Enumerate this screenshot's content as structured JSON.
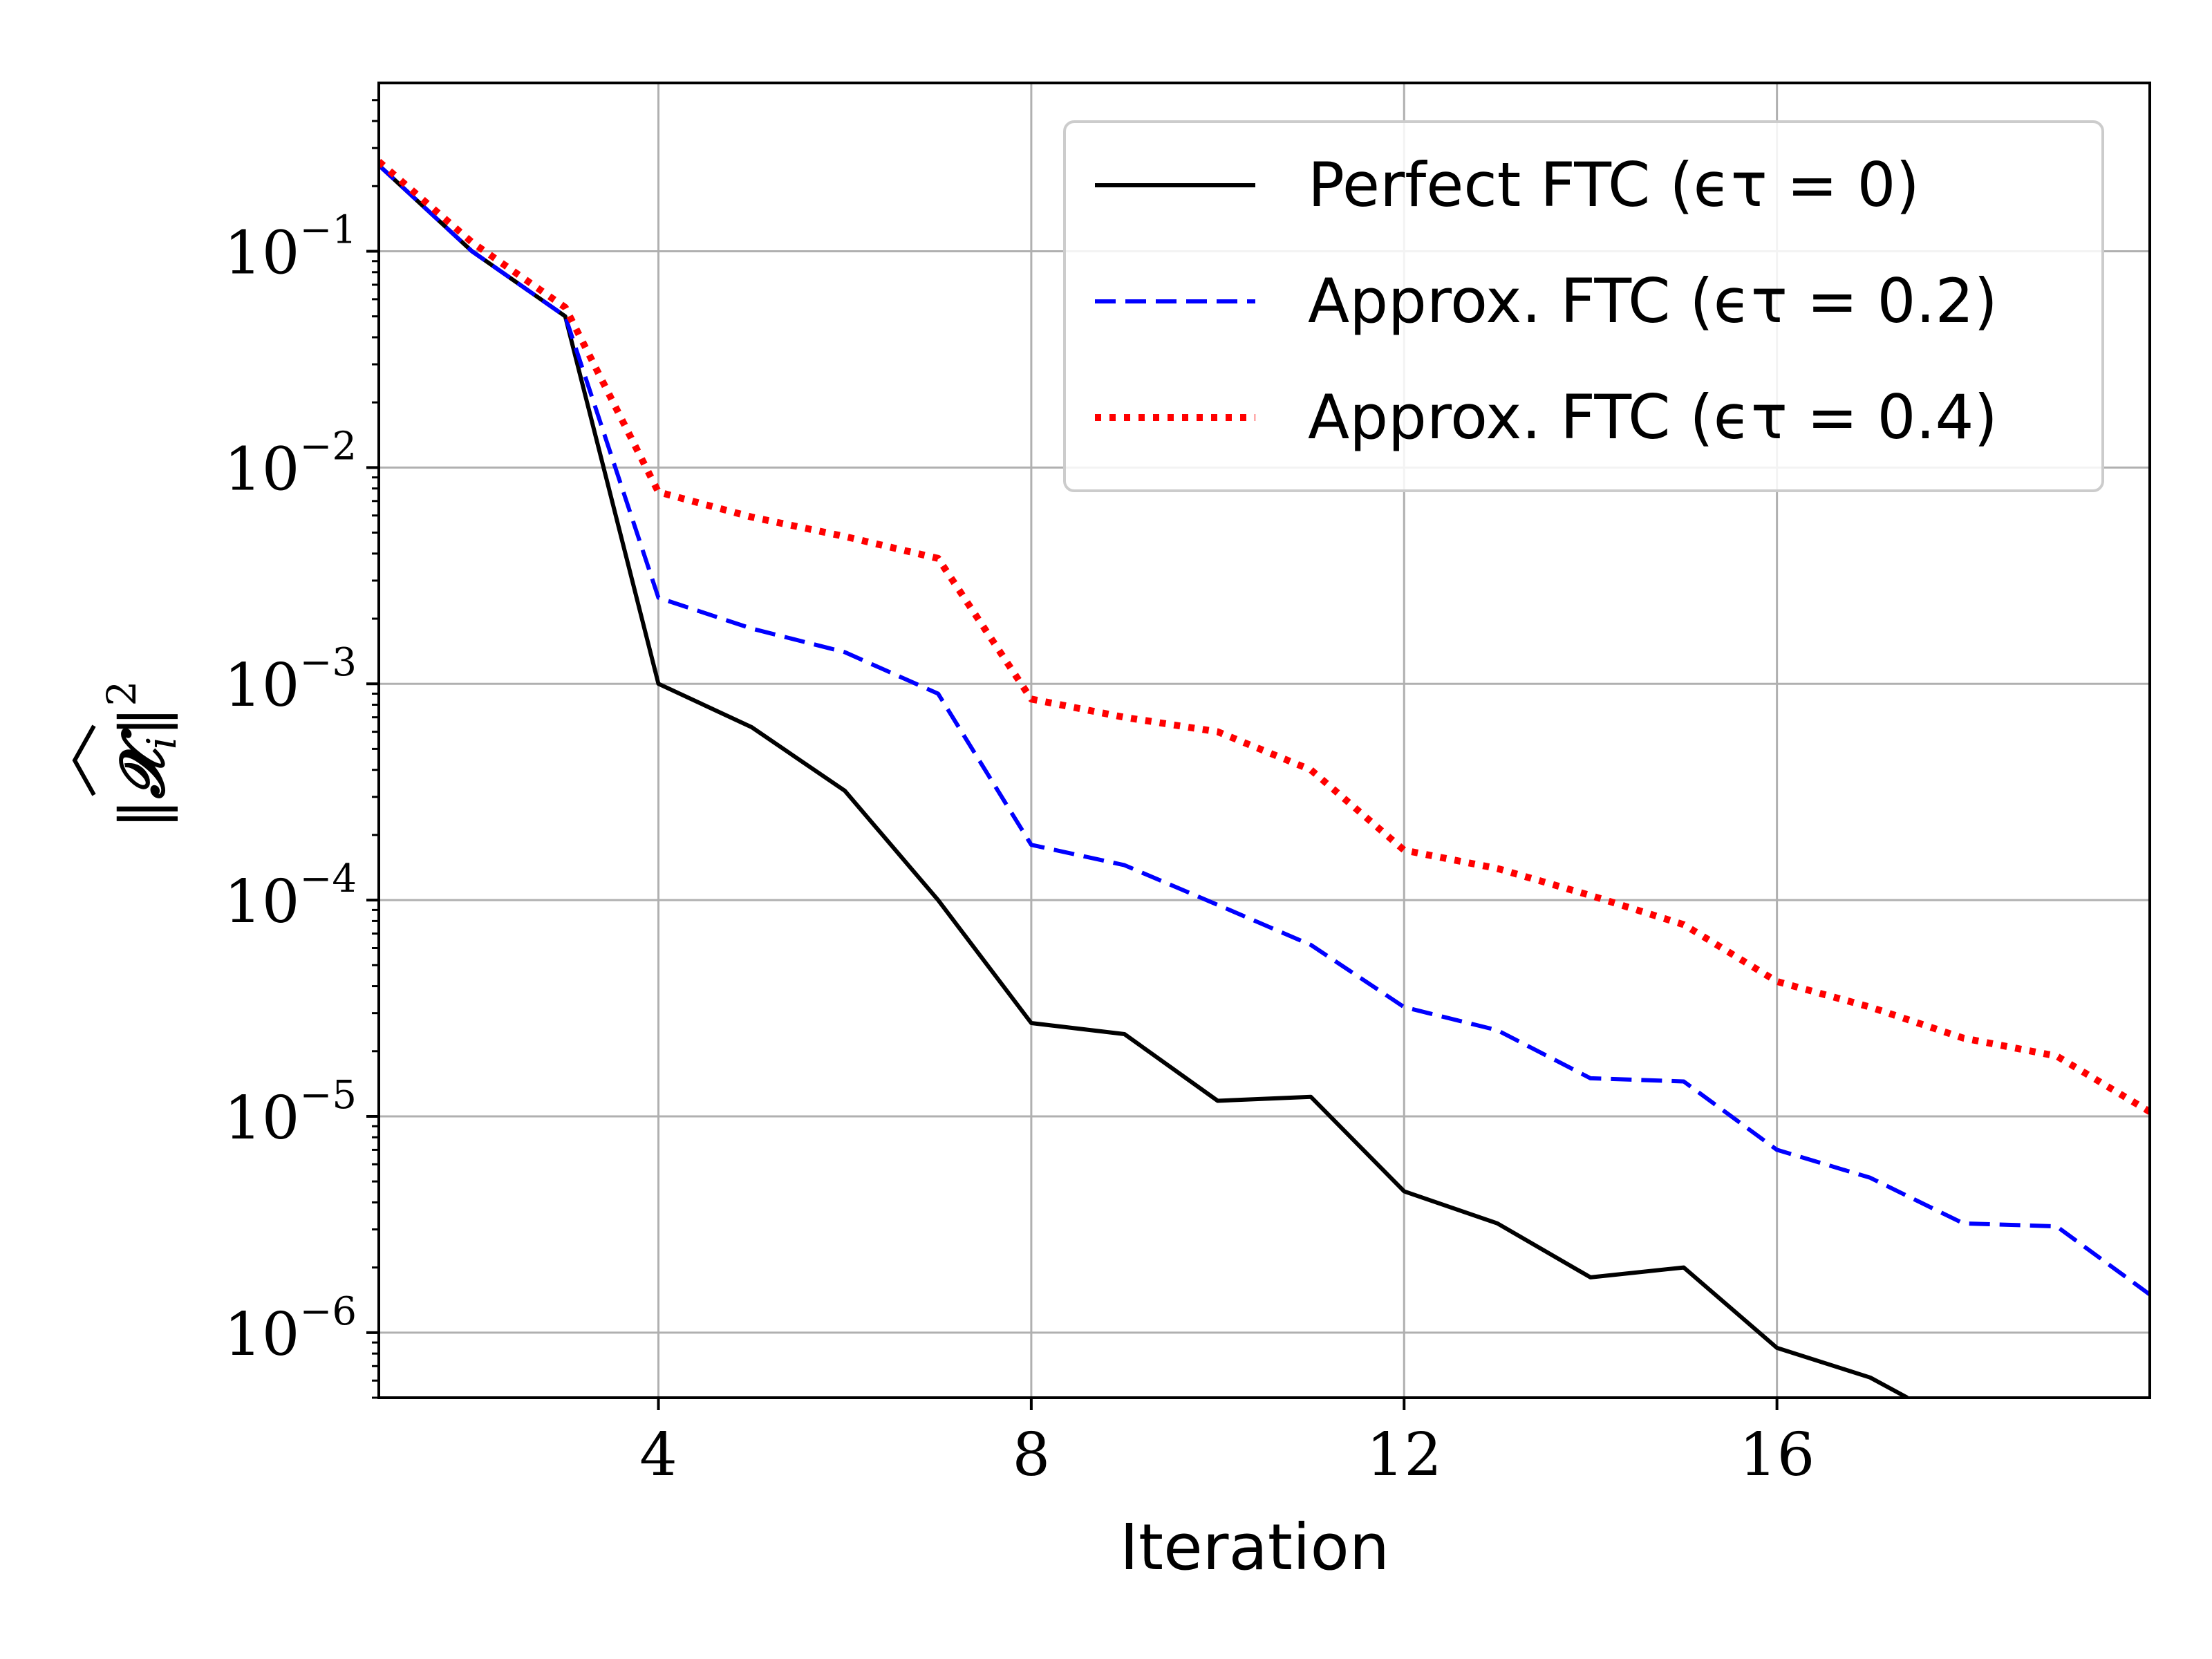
{
  "chart_data": {
    "type": "line",
    "title": "",
    "xlabel": "Iteration",
    "ylabel": "||X̂ᵢ||²",
    "yscale": "log",
    "grid": true,
    "legend_position": "top-right",
    "xlim": [
      1,
      20
    ],
    "ylim": [
      5e-07,
      0.6
    ],
    "xticks": [
      4,
      8,
      12,
      16
    ],
    "xtick_labels": [
      "4",
      "8",
      "12",
      "16"
    ],
    "yticks": [
      0.1,
      0.01,
      0.001,
      0.0001,
      1e-05,
      1e-06
    ],
    "ytick_base": "10",
    "ytick_exponents": [
      "−1",
      "−2",
      "−3",
      "−4",
      "−5",
      "−6"
    ],
    "series": [
      {
        "name": "Perfect FTC (ϵτ = 0)",
        "color": "#000000",
        "style": "solid",
        "x": [
          1,
          2,
          3,
          4,
          5,
          6,
          7,
          8,
          9,
          10,
          11,
          12,
          13,
          14,
          15,
          16,
          17,
          17.4
        ],
        "values": [
          0.25,
          0.1,
          0.05,
          0.001,
          0.00063,
          0.00032,
          0.0001,
          2.7e-05,
          2.4e-05,
          1.18e-05,
          1.23e-05,
          4.5e-06,
          3.2e-06,
          1.8e-06,
          2e-06,
          8.5e-07,
          6.2e-07,
          5e-07
        ]
      },
      {
        "name": "Approx. FTC (ϵτ = 0.2)",
        "color": "#0000ff",
        "style": "dashed",
        "x": [
          1,
          2,
          3,
          4,
          5,
          6,
          7,
          8,
          9,
          10,
          11,
          12,
          13,
          14,
          15,
          16,
          17,
          18,
          19,
          20
        ],
        "values": [
          0.25,
          0.1,
          0.05,
          0.0025,
          0.0018,
          0.0014,
          0.0009,
          0.00018,
          0.000145,
          9.5e-05,
          6.2e-05,
          3.2e-05,
          2.5e-05,
          1.5e-05,
          1.45e-05,
          7e-06,
          5.2e-06,
          3.2e-06,
          3.1e-06,
          1.5e-06
        ]
      },
      {
        "name": "Approx. FTC (ϵτ = 0.4)",
        "color": "#ff0000",
        "style": "dotted",
        "x": [
          1,
          2,
          3,
          4,
          5,
          6,
          7,
          8,
          9,
          10,
          11,
          12,
          13,
          14,
          15,
          16,
          17,
          18,
          19,
          20
        ],
        "values": [
          0.26,
          0.11,
          0.055,
          0.0077,
          0.0059,
          0.0048,
          0.0038,
          0.00085,
          0.0007,
          0.0006,
          0.0004,
          0.00017,
          0.00014,
          0.000105,
          7.7e-05,
          4.2e-05,
          3.2e-05,
          2.3e-05,
          1.9e-05,
          1.05e-05
        ]
      }
    ]
  }
}
